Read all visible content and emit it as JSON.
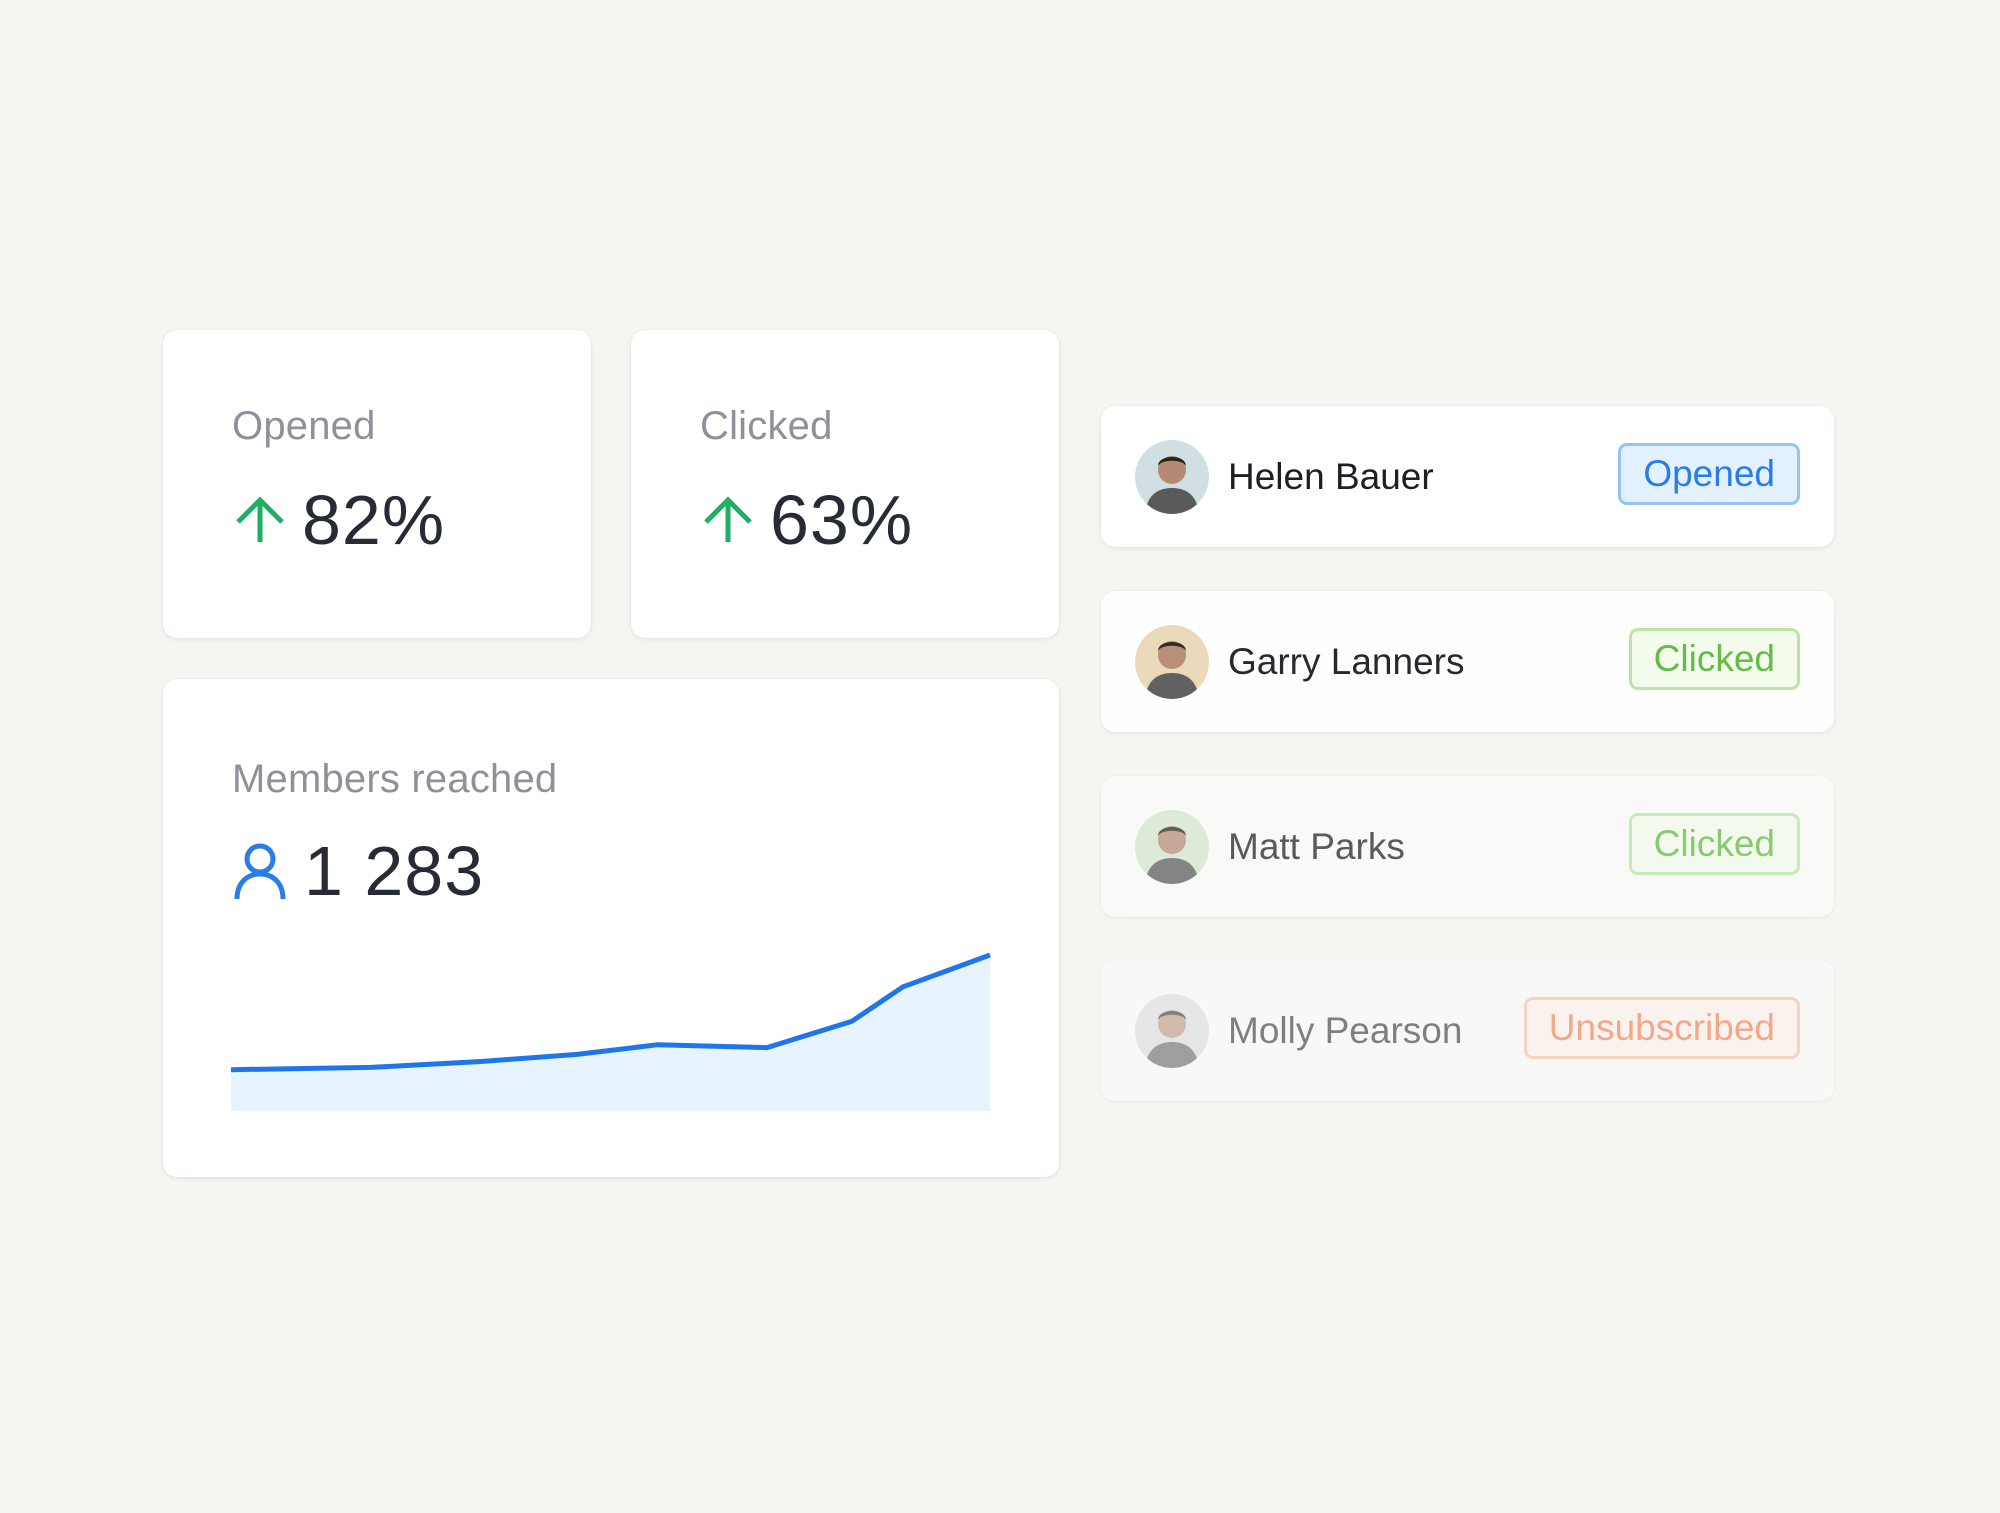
{
  "stats": {
    "opened": {
      "label": "Opened",
      "value": "82%",
      "trend": "up",
      "trend_icon": "arrow-up-icon",
      "trend_color": "#1fae63"
    },
    "clicked": {
      "label": "Clicked",
      "value": "63%",
      "trend": "up",
      "trend_icon": "arrow-up-icon",
      "trend_color": "#1fae63"
    }
  },
  "members": {
    "label": "Members reached",
    "value": "1 283",
    "icon": "user-icon",
    "icon_color": "#2a7de9"
  },
  "chart_data": {
    "type": "area",
    "title": "Members reached",
    "x": [
      0,
      1,
      2,
      3,
      4,
      5,
      6,
      7,
      8
    ],
    "values": [
      120,
      128,
      148,
      172,
      205,
      195,
      285,
      402,
      510
    ],
    "line_color": "#1f76ec",
    "fill_color": "#e7f3fe",
    "grid": false,
    "xlabel": "",
    "ylabel": ""
  },
  "recipients": [
    {
      "name": "Helen Bauer",
      "status": "Opened",
      "avatar_bg": "#cfdfe2",
      "opacity": 1.0,
      "badge": {
        "text": "#2a7de9",
        "bg": "#e2f1fd",
        "border": "#92c5f5"
      }
    },
    {
      "name": "Garry Lanners",
      "status": "Clicked",
      "avatar_bg": "#ead9b6",
      "opacity": 0.95,
      "badge": {
        "text": "#5dba3e",
        "bg": "#f2fcec",
        "border": "#b7e6a1"
      }
    },
    {
      "name": "Matt Parks",
      "status": "Clicked",
      "avatar_bg": "#d3e6cd",
      "opacity": 0.72,
      "badge": {
        "text": "#5dba3e",
        "bg": "#f2fcec",
        "border": "#b7e6a1"
      }
    },
    {
      "name": "Molly Pearson",
      "status": "Unsubscribed",
      "avatar_bg": "#d9d9e0",
      "opacity": 0.55,
      "badge": {
        "text": "#ee6b3c",
        "bg": "#fff1ea",
        "border": "#f6b9a0"
      }
    }
  ]
}
